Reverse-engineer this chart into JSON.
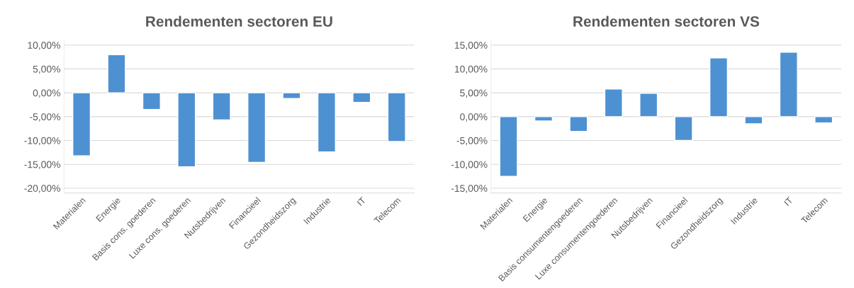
{
  "chart_data": [
    {
      "type": "bar",
      "title": "Rendementen sectoren EU",
      "categories": [
        "Materialen",
        "Energie",
        "Basis cons. goederen",
        "Luxe cons. goederen",
        "Nutsbedrijven",
        "Financieel",
        "Gezondheidszorg",
        "Industrie",
        "IT",
        "Telecom"
      ],
      "values": [
        -13.2,
        8.0,
        -3.5,
        -15.5,
        -5.7,
        -14.6,
        -1.2,
        -12.4,
        -2.0,
        -10.2
      ],
      "color": "#4e91d2",
      "ylim": [
        -21,
        11
      ],
      "yticks": [
        {
          "value": -20,
          "label": "-20,00%"
        },
        {
          "value": -15,
          "label": "-15,00%"
        },
        {
          "value": -10,
          "label": "-10,00%"
        },
        {
          "value": -5,
          "label": "-5,00%"
        },
        {
          "value": 0,
          "label": "0,00%"
        },
        {
          "value": 5,
          "label": "5,00%"
        },
        {
          "value": 10,
          "label": "10,00%"
        }
      ],
      "grid": "y"
    },
    {
      "type": "bar",
      "title": "Rendementen sectoren VS",
      "categories": [
        "Materialen",
        "Energie",
        "Basis consumentengoederen",
        "Luxe consumentengoederen",
        "Nutsbedrijven",
        "Financieel",
        "Gezondheidszorg",
        "Industrie",
        "IT",
        "Telecom"
      ],
      "values": [
        -12.5,
        -0.9,
        -3.1,
        5.8,
        4.9,
        -5.0,
        12.3,
        -1.5,
        13.5,
        -1.3
      ],
      "color": "#4e91d2",
      "ylim": [
        -16,
        16
      ],
      "yticks": [
        {
          "value": -15,
          "label": "-15,00%"
        },
        {
          "value": -10,
          "label": "-10,00%"
        },
        {
          "value": -5,
          "label": "-5,00%"
        },
        {
          "value": 0,
          "label": "0,00%"
        },
        {
          "value": 5,
          "label": "5,00%"
        },
        {
          "value": 10,
          "label": "10,00%"
        },
        {
          "value": 15,
          "label": "15,00%"
        }
      ],
      "grid": "y"
    }
  ]
}
